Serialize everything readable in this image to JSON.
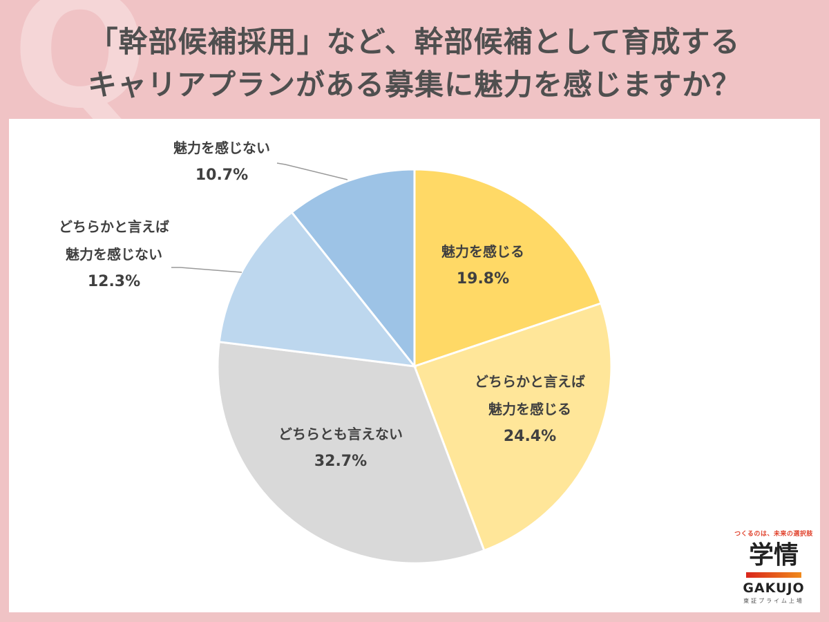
{
  "header": {
    "q_mark": "Q",
    "title_line1": "「幹部候補採用」など、幹部候補として育成する",
    "title_line2": "キャリアプランがある募集に魅力を感じますか？"
  },
  "colors": {
    "background": "#f0c3c5",
    "panel": "#ffffff",
    "text": "#404040"
  },
  "chart_data": {
    "type": "pie",
    "title": "「幹部候補採用」など、幹部候補として育成するキャリアプランがある募集に魅力を感じますか？",
    "start_angle_deg": 0,
    "direction": "clockwise",
    "slices": [
      {
        "label": "魅力を感じる",
        "label_lines": [
          "魅力を感じる"
        ],
        "value": 19.8,
        "display": "19.8%",
        "color": "#ffd966"
      },
      {
        "label": "どちらかと言えば魅力を感じる",
        "label_lines": [
          "どちらかと言えば",
          "魅力を感じる"
        ],
        "value": 24.4,
        "display": "24.4%",
        "color": "#ffe699"
      },
      {
        "label": "どちらとも言えない",
        "label_lines": [
          "どちらとも言えない"
        ],
        "value": 32.7,
        "display": "32.7%",
        "color": "#d9d9d9"
      },
      {
        "label": "どちらかと言えば魅力を感じない",
        "label_lines": [
          "どちらかと言えば",
          "魅力を感じない"
        ],
        "value": 12.3,
        "display": "12.3%",
        "color": "#bdd7ee"
      },
      {
        "label": "魅力を感じない",
        "label_lines": [
          "魅力を感じない"
        ],
        "value": 10.7,
        "display": "10.7%",
        "color": "#9dc3e6"
      }
    ],
    "legend": "none",
    "labels_position": "inside (outside with leader lines for small slices)"
  },
  "labels": {
    "s0": {
      "l1": "魅力を感じる",
      "pct": "19.8%"
    },
    "s1": {
      "l1": "どちらかと言えば",
      "l2": "魅力を感じる",
      "pct": "24.4%"
    },
    "s2": {
      "l1": "どちらとも言えない",
      "pct": "32.7%"
    },
    "s3": {
      "l1": "どちらかと言えば",
      "l2": "魅力を感じない",
      "pct": "12.3%"
    },
    "s4": {
      "l1": "魅力を感じない",
      "pct": "10.7%"
    }
  },
  "logo": {
    "tagline": "つくるのは、未来の選択肢",
    "kanji": "学情",
    "english": "GAKUJO",
    "subtitle": "東証プライム上場"
  }
}
